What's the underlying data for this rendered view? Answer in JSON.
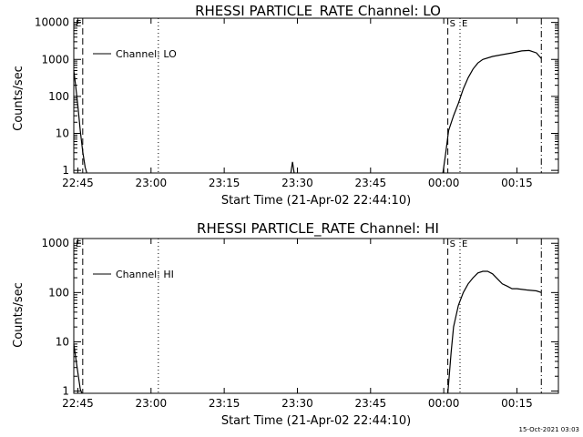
{
  "footer_timestamp": "15-Oct-2021 03:03",
  "chart_data": [
    {
      "type": "line",
      "title": "RHESSI PARTICLE_RATE Channel: LO",
      "xlabel": "Start Time (21-Apr-02 22:44:10)",
      "ylabel": "Counts/sec",
      "y_scale": "log",
      "ylim": [
        0.85,
        13000
      ],
      "xlim": [
        "22:44:10",
        "00:23:30"
      ],
      "x_ticks": [
        "22:45",
        "23:00",
        "23:15",
        "23:30",
        "23:45",
        "00:00",
        "00:15"
      ],
      "y_ticks": [
        "1",
        "10",
        "100",
        "1000",
        "10000"
      ],
      "legend": "Channel: LO",
      "legend_position": "top-left",
      "markers": [
        {
          "time": "22:44:10",
          "style": "solid",
          "label": "E"
        },
        {
          "time": "22:46:00",
          "style": "dashed",
          "label": ""
        },
        {
          "time": "23:01:30",
          "style": "dotted",
          "label": ""
        },
        {
          "time": "00:00:50",
          "style": "dashed",
          "label": "S"
        },
        {
          "time": "00:03:20",
          "style": "dotted",
          "label": "E"
        },
        {
          "time": "00:20:00",
          "style": "dashdot",
          "label": ""
        }
      ],
      "series": [
        {
          "name": "Channel: LO",
          "segments": [
            {
              "x": [
                "22:44:10",
                "22:44:30",
                "22:45:00",
                "22:45:30",
                "22:46:00",
                "22:46:30",
                "22:46:50"
              ],
              "y": [
                500,
                220,
                55,
                12,
                3.2,
                1.2,
                0.85
              ]
            },
            {
              "x": [
                "23:28:40",
                "23:29:00",
                "23:29:20"
              ],
              "y": [
                0.85,
                1.7,
                0.85
              ]
            },
            {
              "x": [
                "23:59:50",
                "00:00:20",
                "00:01:00",
                "00:02:00",
                "00:03:00",
                "00:04:00",
                "00:05:00",
                "00:06:00",
                "00:07:00",
                "00:08:00",
                "00:10:00",
                "00:12:00",
                "00:14:00",
                "00:16:00",
                "00:17:30",
                "00:19:00",
                "00:20:00"
              ],
              "y": [
                0.85,
                2.5,
                12,
                30,
                65,
                160,
                320,
                550,
                800,
                1000,
                1200,
                1350,
                1500,
                1700,
                1750,
                1500,
                1050
              ]
            }
          ]
        }
      ]
    },
    {
      "type": "line",
      "title": "RHESSI PARTICLE_RATE Channel: HI",
      "xlabel": "Start Time (21-Apr-02 22:44:10)",
      "ylabel": "Counts/sec",
      "y_scale": "log",
      "ylim": [
        0.9,
        1250
      ],
      "xlim": [
        "22:44:10",
        "00:23:30"
      ],
      "x_ticks": [
        "22:45",
        "23:00",
        "23:15",
        "23:30",
        "23:45",
        "00:00",
        "00:15"
      ],
      "y_ticks": [
        "1",
        "10",
        "100",
        "1000"
      ],
      "legend": "Channel: HI",
      "legend_position": "top-left",
      "markers": [
        {
          "time": "22:44:10",
          "style": "solid",
          "label": "E"
        },
        {
          "time": "22:46:00",
          "style": "dashed",
          "label": ""
        },
        {
          "time": "23:01:30",
          "style": "dotted",
          "label": ""
        },
        {
          "time": "00:00:50",
          "style": "dashed",
          "label": "S"
        },
        {
          "time": "00:03:20",
          "style": "dotted",
          "label": "E"
        },
        {
          "time": "00:20:00",
          "style": "dashdot",
          "label": ""
        }
      ],
      "series": [
        {
          "name": "Channel: HI",
          "segments": [
            {
              "x": [
                "22:44:10",
                "22:44:40",
                "22:45:10",
                "22:45:30",
                "22:45:50"
              ],
              "y": [
                9,
                4,
                1.8,
                1.1,
                0.9
              ]
            },
            {
              "x": [
                "00:00:50",
                "00:01:30",
                "00:02:00",
                "00:03:00",
                "00:04:00",
                "00:05:00",
                "00:06:00",
                "00:07:00",
                "00:08:00",
                "00:09:00",
                "00:10:00",
                "00:11:00",
                "00:12:00",
                "00:13:00",
                "00:14:00",
                "00:15:00",
                "00:17:00",
                "00:19:00",
                "00:20:00"
              ],
              "y": [
                0.9,
                6,
                20,
                55,
                100,
                150,
                200,
                250,
                270,
                270,
                240,
                190,
                150,
                135,
                120,
                120,
                113,
                108,
                100
              ]
            }
          ]
        }
      ]
    }
  ]
}
